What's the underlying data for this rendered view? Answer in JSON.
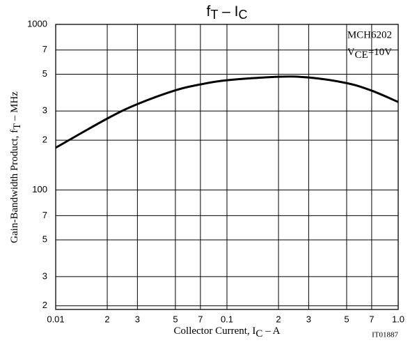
{
  "chart_data": {
    "type": "line",
    "title": [
      "f",
      "T",
      " – ",
      "I",
      "C"
    ],
    "y_label": [
      "Gain-Bandwidth Product, f",
      "T",
      " – MHz"
    ],
    "x_label": [
      "Collector Current, I",
      "C",
      " – A"
    ],
    "annotation": [
      "MCH6202",
      "V",
      "CE",
      "=10V"
    ],
    "figure_code": "IT01887",
    "x_log": true,
    "y_log": true,
    "grid": true,
    "xlim": [
      0.01,
      1
    ],
    "xticks": [
      0.01,
      {
        "value": 0.02,
        "label": "2"
      },
      {
        "value": 0.03,
        "label": "3"
      },
      {
        "value": 0.05,
        "label": "5"
      },
      {
        "value": 0.07,
        "label": "7"
      },
      0.1,
      {
        "value": 0.2,
        "label": "2"
      },
      {
        "value": 0.3,
        "label": "3"
      },
      {
        "value": 0.5,
        "label": "5"
      },
      {
        "value": 0.7,
        "label": "7"
      },
      {
        "value": 1,
        "label": "1.0"
      }
    ],
    "ylim": [
      19,
      1000
    ],
    "yticks": [
      {
        "value": 20,
        "label": "2"
      },
      {
        "value": 30,
        "label": "3"
      },
      {
        "value": 50,
        "label": "5"
      },
      {
        "value": 70,
        "label": "7"
      },
      100,
      {
        "value": 200,
        "label": "2"
      },
      {
        "value": 300,
        "label": "3"
      },
      {
        "value": 500,
        "label": "5"
      },
      {
        "value": 700,
        "label": "7"
      },
      1000
    ],
    "x": [
      0.01,
      0.02,
      0.03,
      0.05,
      0.07,
      0.1,
      0.2,
      0.3,
      0.5,
      0.7,
      1
    ],
    "series": [
      {
        "color": "#000000",
        "values": [
          180,
          270,
          330,
          400,
          434,
          460,
          483,
          478,
          442,
          398,
          340
        ]
      }
    ]
  }
}
